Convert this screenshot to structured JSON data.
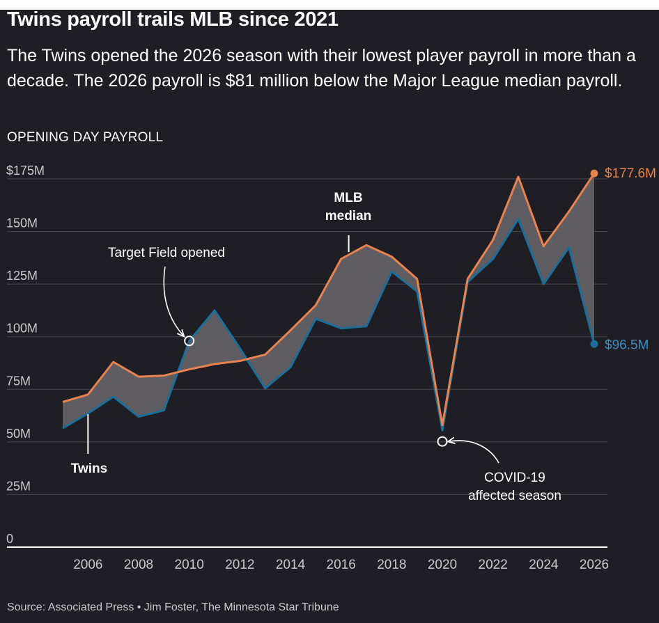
{
  "header": {
    "title": "Twins payroll trails MLB since 2021",
    "subtitle": "The Twins opened the 2026 season with their lowest player payroll in more than a decade. The 2026 payroll is $81 million below the Major League median payroll.",
    "section_label": "OPENING DAY PAYROLL"
  },
  "footer": {
    "source": "Source: Associated Press • Jim Foster, The Minnesota Star Tribune"
  },
  "colors": {
    "background": "#1f1e24",
    "mlb_line": "#e8824f",
    "twins_line": "#1a6e99",
    "gap_fill": "#5f5d61",
    "grid": "#4a4950",
    "text": "#ffffff",
    "axis_text": "#c9c9cc"
  },
  "chart_data": {
    "type": "area",
    "title": "OPENING DAY PAYROLL",
    "xlabel": "",
    "ylabel": "",
    "x": [
      2005,
      2006,
      2007,
      2008,
      2009,
      2010,
      2011,
      2012,
      2013,
      2014,
      2015,
      2016,
      2017,
      2018,
      2019,
      2020,
      2021,
      2022,
      2023,
      2024,
      2025,
      2026
    ],
    "xlim": [
      2005,
      2026
    ],
    "ylim": [
      0,
      175
    ],
    "y_ticks": [
      {
        "value": 175,
        "label": "$175M"
      },
      {
        "value": 150,
        "label": "150M"
      },
      {
        "value": 125,
        "label": "125M"
      },
      {
        "value": 100,
        "label": "100M"
      },
      {
        "value": 75,
        "label": "75M"
      },
      {
        "value": 50,
        "label": "50M"
      },
      {
        "value": 25,
        "label": "25M"
      },
      {
        "value": 0,
        "label": "0"
      }
    ],
    "x_ticks": [
      {
        "value": 2006,
        "label": "2006"
      },
      {
        "value": 2008,
        "label": "2008"
      },
      {
        "value": 2010,
        "label": "2010"
      },
      {
        "value": 2012,
        "label": "2012"
      },
      {
        "value": 2014,
        "label": "2014"
      },
      {
        "value": 2016,
        "label": "2016"
      },
      {
        "value": 2018,
        "label": "2018"
      },
      {
        "value": 2020,
        "label": "2020"
      },
      {
        "value": 2022,
        "label": "2022"
      },
      {
        "value": 2024,
        "label": "2024"
      },
      {
        "value": 2026,
        "label": "2026"
      }
    ],
    "series": [
      {
        "name": "MLB median",
        "values": [
          69,
          72.5,
          88,
          81,
          81.5,
          84.5,
          87,
          88.5,
          91.5,
          103,
          115,
          137,
          143.5,
          138,
          127.5,
          58,
          127.5,
          146,
          176,
          143,
          159.5,
          177.6
        ]
      },
      {
        "name": "Twins",
        "values": [
          56.5,
          63.5,
          71.5,
          62,
          65,
          98,
          112.5,
          94.5,
          75.5,
          85.5,
          108.5,
          104,
          105,
          131,
          121.5,
          55.5,
          126,
          137,
          156,
          125,
          142.5,
          96.5
        ]
      }
    ],
    "end_labels": [
      {
        "series": "MLB median",
        "text": "$177.6M"
      },
      {
        "series": "Twins",
        "text": "$96.5M"
      }
    ],
    "annotations": [
      {
        "text_lines": [
          "MLB",
          "median"
        ],
        "year": 2016.3,
        "value": 143
      },
      {
        "text_lines": [
          "Twins"
        ],
        "year": 2006,
        "value": 64
      },
      {
        "text_lines": [
          "Target Field opened"
        ],
        "year": 2010,
        "value": 98
      },
      {
        "text_lines": [
          "COVID-19",
          "affected season"
        ],
        "year": 2020,
        "value": 55.5
      }
    ]
  }
}
